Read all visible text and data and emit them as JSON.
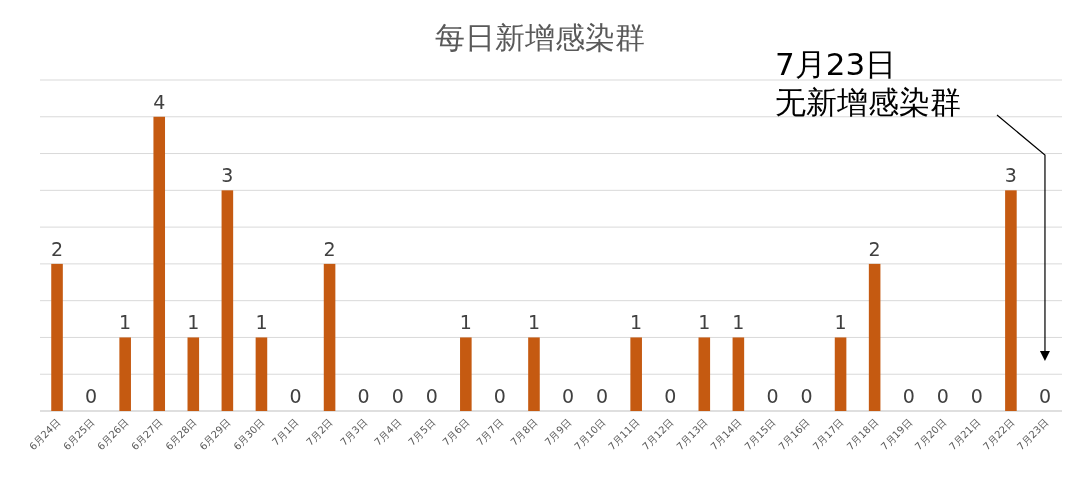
{
  "chart_data": {
    "type": "bar",
    "title": "每日新增感染群",
    "categories": [
      "6月24日",
      "6月25日",
      "6月26日",
      "6月27日",
      "6月28日",
      "6月29日",
      "6月30日",
      "7月1日",
      "7月2日",
      "7月3日",
      "7月4日",
      "7月5日",
      "7月6日",
      "7月7日",
      "7月8日",
      "7月9日",
      "7月10日",
      "7月11日",
      "7月12日",
      "7月13日",
      "7月14日",
      "7月15日",
      "7月16日",
      "7月17日",
      "7月18日",
      "7月19日",
      "7月20日",
      "7月21日",
      "7月22日",
      "7月23日"
    ],
    "values": [
      2,
      0,
      1,
      4,
      1,
      3,
      1,
      0,
      2,
      0,
      0,
      0,
      1,
      0,
      1,
      0,
      0,
      1,
      0,
      1,
      1,
      0,
      0,
      1,
      2,
      0,
      0,
      0,
      3,
      0
    ],
    "color": "#c55a11",
    "ylim": [
      0,
      4.5
    ],
    "yticks": [
      {
        "value": 0,
        "label": null
      },
      {
        "value": 0.5,
        "label": null
      },
      {
        "value": 1,
        "label": null
      },
      {
        "value": 1.5,
        "label": null
      },
      {
        "value": 2,
        "label": null
      },
      {
        "value": 2.5,
        "label": null
      },
      {
        "value": 3,
        "label": null
      },
      {
        "value": 3.5,
        "label": null
      },
      {
        "value": 4,
        "label": null
      },
      {
        "value": 4.5,
        "label": null
      }
    ],
    "grid": "y",
    "tick_labels": "x",
    "data_labels": true,
    "annotations": [
      "7月23日",
      "无新增感染群"
    ]
  }
}
